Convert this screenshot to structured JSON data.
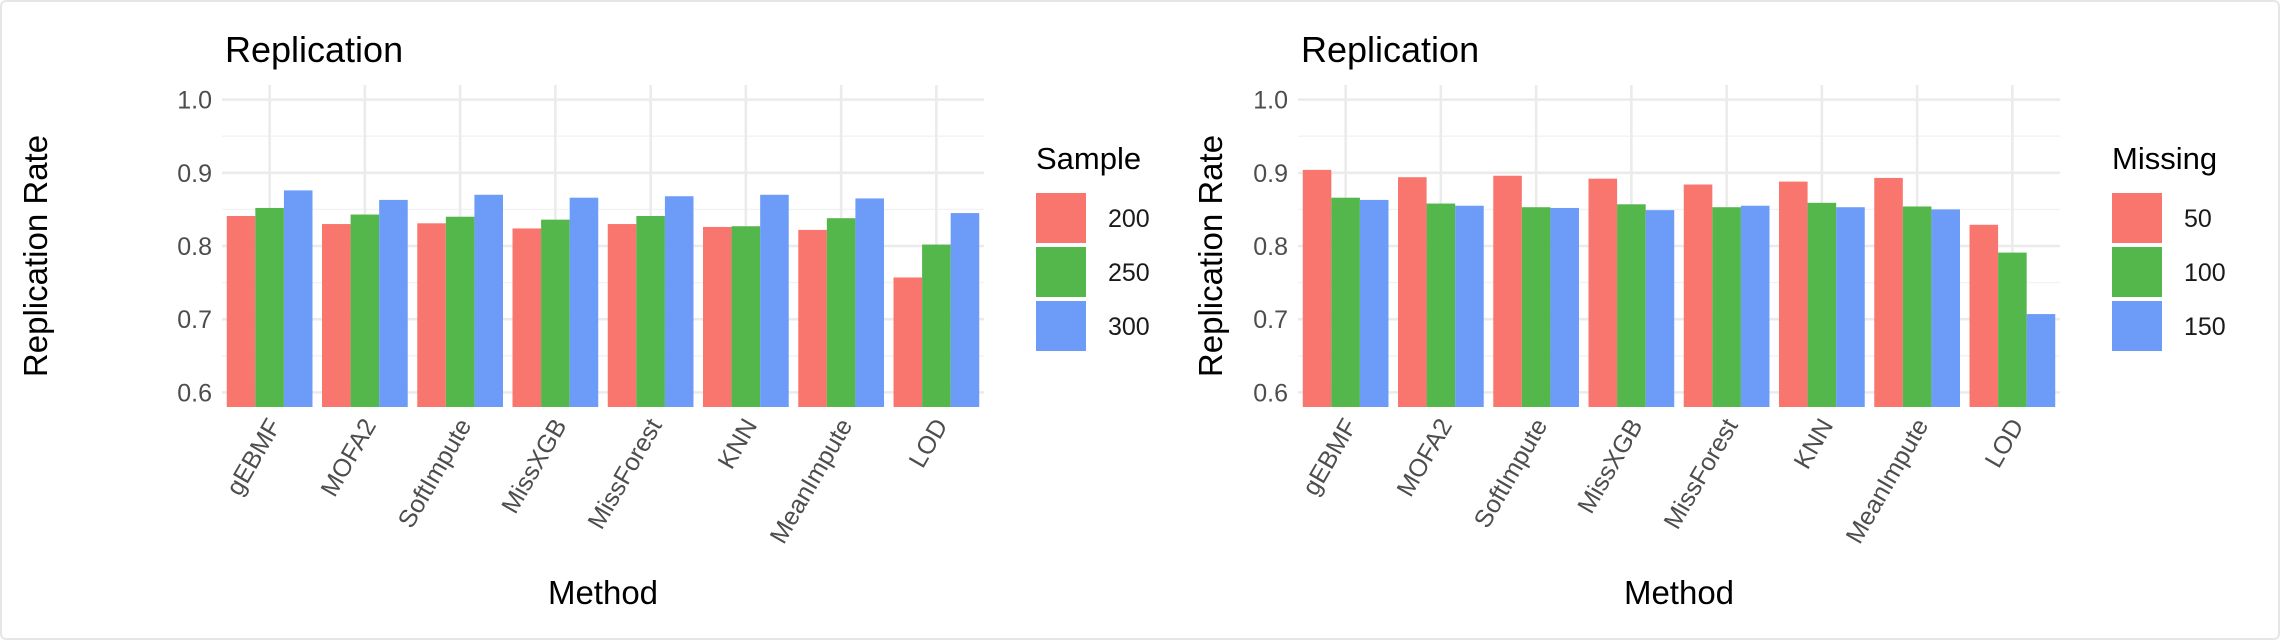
{
  "chart_data": [
    {
      "type": "bar",
      "title": "Replication",
      "xlabel": "Method",
      "ylabel": "Replication Rate",
      "ylim": [
        0.58,
        1.02
      ],
      "yticks": [
        "0.6",
        "0.7",
        "0.8",
        "0.9",
        "1.0"
      ],
      "grid": true,
      "legend_position": "right",
      "legend_title": "Sample",
      "categories": [
        "gEBMF",
        "MOFA2",
        "SoftImpute",
        "MissXGB",
        "MissForest",
        "KNN",
        "MeanImpute",
        "LOD"
      ],
      "series": [
        {
          "name": "200",
          "color": "#F8766D",
          "values": [
            0.841,
            0.83,
            0.831,
            0.824,
            0.83,
            0.826,
            0.822,
            0.757
          ]
        },
        {
          "name": "250",
          "color": "#53B74C",
          "values": [
            0.852,
            0.843,
            0.84,
            0.836,
            0.841,
            0.827,
            0.838,
            0.802
          ]
        },
        {
          "name": "300",
          "color": "#6D9CF8",
          "values": [
            0.876,
            0.863,
            0.87,
            0.866,
            0.868,
            0.87,
            0.865,
            0.845
          ]
        }
      ]
    },
    {
      "type": "bar",
      "title": "Replication",
      "xlabel": "Method",
      "ylabel": "Replication Rate",
      "ylim": [
        0.58,
        1.02
      ],
      "yticks": [
        "0.6",
        "0.7",
        "0.8",
        "0.9",
        "1.0"
      ],
      "grid": true,
      "legend_position": "right",
      "legend_title": "Missing",
      "categories": [
        "gEBMF",
        "MOFA2",
        "SoftImpute",
        "MissXGB",
        "MissForest",
        "KNN",
        "MeanImpute",
        "LOD"
      ],
      "series": [
        {
          "name": "50",
          "color": "#F8766D",
          "values": [
            0.904,
            0.894,
            0.896,
            0.892,
            0.884,
            0.888,
            0.893,
            0.829
          ]
        },
        {
          "name": "100",
          "color": "#53B74C",
          "values": [
            0.866,
            0.858,
            0.853,
            0.857,
            0.853,
            0.859,
            0.854,
            0.791
          ]
        },
        {
          "name": "150",
          "color": "#6D9CF8",
          "values": [
            0.863,
            0.855,
            0.852,
            0.849,
            0.855,
            0.853,
            0.85,
            0.707
          ]
        }
      ]
    }
  ]
}
